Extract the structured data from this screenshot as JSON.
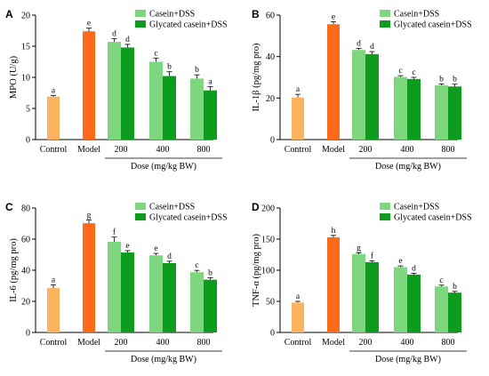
{
  "colors": {
    "control": "#FDB35E",
    "model": "#FF6A1A",
    "casein": "#7ED77E",
    "glycated": "#0E9C1E"
  },
  "groups": [
    "Control",
    "Model",
    "200",
    "400",
    "800"
  ],
  "legend": [
    "Casein+DSS",
    "Glycated casein+DSS"
  ],
  "x_title": "Dose (mg/kg  BW)",
  "chart_data": [
    {
      "type": "bar",
      "panel": "A",
      "ylabel": "MPO (U/g)",
      "ylim": [
        0,
        20
      ],
      "yticks": [
        0,
        5,
        10,
        15,
        20
      ],
      "control": {
        "value": 6.9,
        "err": 0.2,
        "label": "a"
      },
      "model": {
        "value": 17.4,
        "err": 0.5,
        "label": "e"
      },
      "series": [
        {
          "name": "Casein+DSS",
          "values": [
            15.7,
            12.5,
            9.8
          ],
          "errors": [
            0.5,
            0.6,
            0.6
          ],
          "labels": [
            "d",
            "c",
            "b"
          ]
        },
        {
          "name": "Glycated casein+DSS",
          "values": [
            14.8,
            10.2,
            7.9
          ],
          "errors": [
            0.5,
            0.7,
            0.6
          ],
          "labels": [
            "d",
            "b",
            "a"
          ]
        }
      ]
    },
    {
      "type": "bar",
      "panel": "B",
      "ylabel": "IL-1β (pg/mg pro)",
      "ylim": [
        0,
        60
      ],
      "yticks": [
        0,
        20,
        40,
        60
      ],
      "control": {
        "value": 20.3,
        "err": 1.5,
        "label": "a"
      },
      "model": {
        "value": 55.6,
        "err": 1.2,
        "label": "e"
      },
      "series": [
        {
          "name": "Casein+DSS",
          "values": [
            43.2,
            30.2,
            26.2
          ],
          "errors": [
            0.8,
            0.6,
            0.6
          ],
          "labels": [
            "d",
            "c",
            "b"
          ]
        },
        {
          "name": "Glycated casein+DSS",
          "values": [
            41.2,
            29.2,
            25.6
          ],
          "errors": [
            1.2,
            0.8,
            1.1
          ],
          "labels": [
            "d",
            "c",
            "b"
          ]
        }
      ]
    },
    {
      "type": "bar",
      "panel": "C",
      "ylabel": "IL-6 (pg/mg pro)",
      "ylim": [
        0,
        80
      ],
      "yticks": [
        0,
        20,
        40,
        60,
        80
      ],
      "control": {
        "value": 28.5,
        "err": 2.0,
        "label": "a"
      },
      "model": {
        "value": 70.2,
        "err": 2.0,
        "label": "g"
      },
      "series": [
        {
          "name": "Casein+DSS",
          "values": [
            58.3,
            49.6,
            38.7
          ],
          "errors": [
            3.0,
            1.2,
            1.2
          ],
          "labels": [
            "f",
            "e",
            "c"
          ]
        },
        {
          "name": "Glycated casein+DSS",
          "values": [
            51.4,
            44.6,
            33.9
          ],
          "errors": [
            1.2,
            1.2,
            1.2
          ],
          "labels": [
            "e",
            "d",
            "b"
          ]
        }
      ]
    },
    {
      "type": "bar",
      "panel": "D",
      "ylabel": "TNF-α (pg/mg pro)",
      "ylim": [
        0,
        200
      ],
      "yticks": [
        0,
        50,
        100,
        150,
        200
      ],
      "control": {
        "value": 48.0,
        "err": 2.0,
        "label": "a"
      },
      "model": {
        "value": 153.0,
        "err": 3.0,
        "label": "h"
      },
      "series": [
        {
          "name": "Casein+DSS",
          "values": [
            126.0,
            105.0,
            74.0
          ],
          "errors": [
            2.0,
            2.0,
            2.0
          ],
          "labels": [
            "g",
            "e",
            "c"
          ]
        },
        {
          "name": "Glycated casein+DSS",
          "values": [
            113.0,
            93.0,
            64.0
          ],
          "errors": [
            2.0,
            2.0,
            2.0
          ],
          "labels": [
            "f",
            "d",
            "b"
          ]
        }
      ]
    }
  ]
}
